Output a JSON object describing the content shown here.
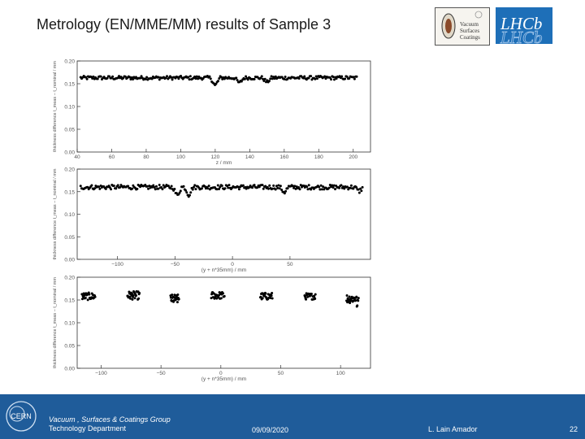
{
  "title": "Metrology (EN/MME/MM) results of Sample 3",
  "logos": {
    "vsc_lines": [
      "Vacuum",
      "Surfaces",
      "Coatings"
    ],
    "lhcb": "LHCb",
    "cern": "CERN"
  },
  "footer": {
    "group": "Vacuum , Surfaces & Coatings Group",
    "department": "Technology Department",
    "date": "09/09/2020",
    "author": "L. Lain Amador",
    "page": "22"
  },
  "colors": {
    "footer_bg": "#1f5c9a",
    "marker": "#000000"
  },
  "chart_data": [
    {
      "type": "scatter",
      "xlabel": "z / mm",
      "ylabel": "thickness difference t_meas − t_nominal / mm",
      "xlim": [
        40,
        210
      ],
      "ylim": [
        0,
        0.2
      ],
      "xticks": [
        40,
        60,
        80,
        100,
        120,
        140,
        160,
        180,
        200
      ],
      "yticks": [
        0.0,
        0.05,
        0.1,
        0.15,
        0.2
      ],
      "grid": false,
      "segments": [
        {
          "x_start": 42,
          "x_end": 202,
          "level": 0.163,
          "noise": 0.004,
          "count": 260,
          "dips": [
            {
              "x": 120,
              "depth": 0.018
            },
            {
              "x": 134,
              "depth": 0.012
            },
            {
              "x": 150,
              "depth": 0.01
            }
          ]
        }
      ]
    },
    {
      "type": "scatter",
      "xlabel": "(y + n*35mm) / mm",
      "ylabel": "thickness difference t_meas − t_nominal / mm",
      "xlim": [
        -135,
        120
      ],
      "ylim": [
        0,
        0.2
      ],
      "xticks": [
        -100,
        -50,
        0,
        50
      ],
      "yticks": [
        0.0,
        0.05,
        0.1,
        0.15,
        0.2
      ],
      "grid": false,
      "segments": [
        {
          "x_start": -132,
          "x_end": 113,
          "level": 0.16,
          "noise": 0.005,
          "count": 280,
          "dips": [
            {
              "x": -48,
              "depth": 0.02
            },
            {
              "x": -38,
              "depth": 0.018
            },
            {
              "x": 45,
              "depth": 0.012
            },
            {
              "x": 110,
              "depth": 0.01
            }
          ]
        }
      ]
    },
    {
      "type": "scatter",
      "xlabel": "(y + n*35mm) / mm",
      "ylabel": "thickness difference t_meas − t_nominal / mm",
      "xlim": [
        -120,
        125
      ],
      "ylim": [
        0,
        0.2
      ],
      "xticks": [
        -100,
        -50,
        0,
        50,
        100
      ],
      "yticks": [
        0.0,
        0.05,
        0.1,
        0.15,
        0.2
      ],
      "grid": false,
      "segments": [
        {
          "x_start": -116,
          "x_end": -105,
          "level": 0.158,
          "noise": 0.008,
          "count": 30,
          "dips": []
        },
        {
          "x_start": -78,
          "x_end": -68,
          "level": 0.16,
          "noise": 0.009,
          "count": 30,
          "dips": []
        },
        {
          "x_start": -42,
          "x_end": -35,
          "level": 0.152,
          "noise": 0.01,
          "count": 24,
          "dips": []
        },
        {
          "x_start": -8,
          "x_end": 3,
          "level": 0.16,
          "noise": 0.008,
          "count": 30,
          "dips": []
        },
        {
          "x_start": 33,
          "x_end": 43,
          "level": 0.158,
          "noise": 0.008,
          "count": 28,
          "dips": []
        },
        {
          "x_start": 70,
          "x_end": 79,
          "level": 0.158,
          "noise": 0.007,
          "count": 26,
          "dips": []
        },
        {
          "x_start": 105,
          "x_end": 115,
          "level": 0.153,
          "noise": 0.01,
          "count": 30,
          "dips": [
            {
              "x": 114,
              "depth": 0.018
            }
          ]
        }
      ]
    }
  ]
}
